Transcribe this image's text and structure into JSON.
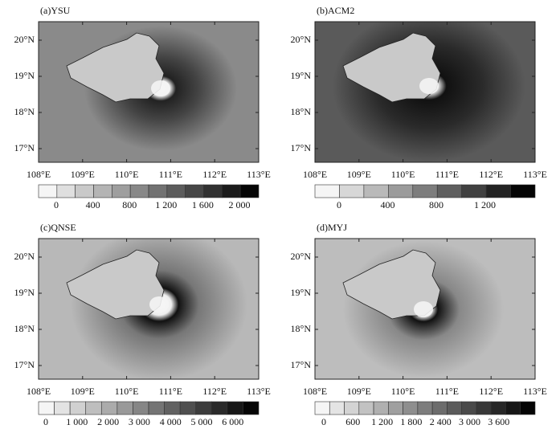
{
  "panels": [
    {
      "title": "(a)YSU",
      "lat_labels": [
        "20°N",
        "19°N",
        "18°N",
        "17°N"
      ],
      "lon_labels": [
        "108°E",
        "109°E",
        "110°E",
        "111°E",
        "112°E",
        "113°E"
      ],
      "colorbar_labels": [
        "0",
        "400",
        "800",
        "1 200",
        "1 600",
        "2 000"
      ]
    },
    {
      "title": "(b)ACM2",
      "lat_labels": [
        "20°N",
        "19°N",
        "18°N",
        "17°N"
      ],
      "lon_labels": [
        "108°E",
        "109°E",
        "110°E",
        "111°E",
        "112°E",
        "113°E"
      ],
      "colorbar_labels": [
        "0",
        "400",
        "800",
        "1 200"
      ]
    },
    {
      "title": "(c)QNSE",
      "lat_labels": [
        "20°N",
        "19°N",
        "18°N",
        "17°N"
      ],
      "lon_labels": [
        "108°E",
        "109°E",
        "110°E",
        "111°E",
        "112°E",
        "113°E"
      ],
      "colorbar_labels": [
        "0",
        "1 000",
        "2 000",
        "3 000",
        "4 000",
        "5 000",
        "6 000"
      ]
    },
    {
      "title": "(d)MYJ",
      "lat_labels": [
        "20°N",
        "19°N",
        "18°N",
        "17°N"
      ],
      "lon_labels": [
        "108°E",
        "109°E",
        "110°E",
        "111°E",
        "112°E",
        "113°E"
      ],
      "colorbar_labels": [
        "0",
        "600",
        "1 200",
        "1 800",
        "2 400",
        "3 000",
        "3 600"
      ]
    }
  ]
}
